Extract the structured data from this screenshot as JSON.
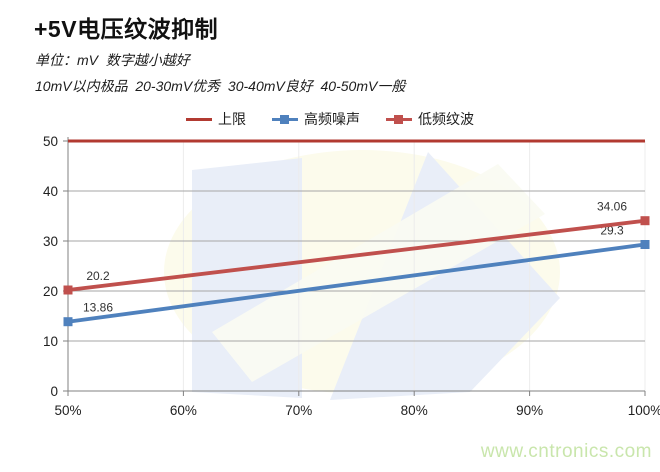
{
  "page": {
    "title": "+5V电压纹波抑制",
    "subtitle": "单位：mV  数字越小越好",
    "grade_note": "10mV以内极品  20-30mV优秀  30-40mV良好  40-50mV一般",
    "watermark_text": "www.cntronics.com"
  },
  "colors": {
    "upper_limit_red": "#b23a31",
    "series_blue": "#4f81bd",
    "series_red": "#c0504d",
    "h_gridline": "#a6a6a6",
    "v_gridline": "#ececec",
    "axis": "#808080",
    "tick_label": "#1f1f1f",
    "data_label": "#333333",
    "watermark_green": "#c9e6ac"
  },
  "chart_data": {
    "type": "line",
    "title": "+5V电压纹波抑制",
    "xlabel": "",
    "ylabel": "",
    "x_ticks": [
      "50%",
      "60%",
      "70%",
      "80%",
      "90%",
      "100%"
    ],
    "y_ticks": [
      0,
      10,
      20,
      30,
      40,
      50
    ],
    "ylim": [
      0,
      50
    ],
    "grid": true,
    "legend_position": "top",
    "x_data": [
      "50%",
      "100%"
    ],
    "series": [
      {
        "id": "upper-limit",
        "name": "上限",
        "color": "#b23a31",
        "marker": "none",
        "values": [
          50,
          50
        ],
        "labels": []
      },
      {
        "id": "high-freq-noise",
        "name": "高频噪声",
        "color": "#4f81bd",
        "marker": "square",
        "values": [
          13.86,
          29.3
        ],
        "labels": [
          "13.86",
          "29.3"
        ]
      },
      {
        "id": "low-freq-ripple",
        "name": "低频纹波",
        "color": "#c0504d",
        "marker": "square",
        "values": [
          20.2,
          34.06
        ],
        "labels": [
          "20.2",
          "34.06"
        ]
      }
    ]
  }
}
